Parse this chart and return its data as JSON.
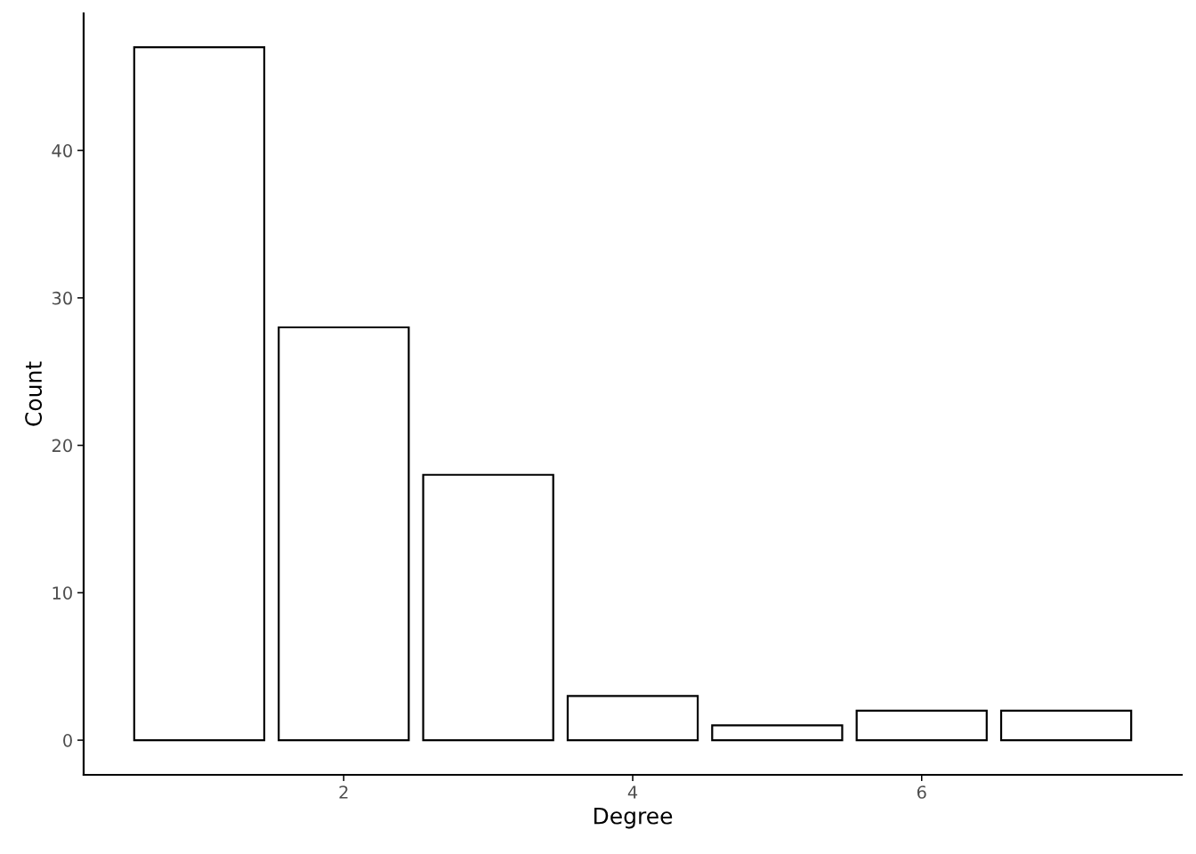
{
  "chart_data": {
    "type": "bar",
    "xlabel": "Degree",
    "ylabel": "Count",
    "x": [
      1,
      2,
      3,
      4,
      5,
      6,
      7
    ],
    "values": [
      47,
      28,
      18,
      3,
      1,
      2,
      2
    ],
    "color": "#ffffff",
    "xlim": [
      0.2,
      7.8
    ],
    "xticks": [
      2,
      4,
      6
    ],
    "ylim": [
      -2.35,
      49.3
    ],
    "yticks": [
      0,
      10,
      20,
      30,
      40
    ],
    "grid": false,
    "legend": false
  }
}
